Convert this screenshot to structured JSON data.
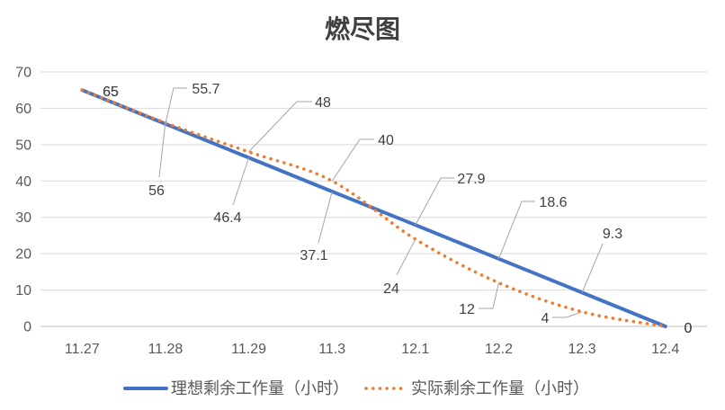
{
  "chart_data": {
    "type": "line",
    "title": "燃尽图",
    "xlabel": "",
    "ylabel": "",
    "categories": [
      "11.27",
      "11.28",
      "11.29",
      "11.3",
      "12.1",
      "12.2",
      "12.3",
      "12.4"
    ],
    "series": [
      {
        "name": "理想剩余工作量（小时）",
        "color": "#4472C4",
        "values": [
          65,
          55.7,
          46.4,
          37.1,
          27.9,
          18.6,
          9.3,
          0
        ]
      },
      {
        "name": "实际剩余工作量（小时）",
        "color": "#ED7D31",
        "values": [
          65,
          56,
          48,
          40,
          24,
          12,
          4,
          0
        ]
      }
    ],
    "ylim": [
      0,
      70
    ],
    "yticks": [
      0,
      10,
      20,
      30,
      40,
      50,
      60,
      70
    ],
    "grid": true,
    "legend": "bottom",
    "data_labels": true
  }
}
